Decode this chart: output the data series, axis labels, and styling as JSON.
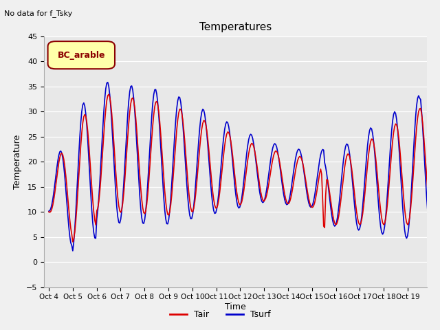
{
  "title": "Temperatures",
  "xlabel": "Time",
  "ylabel": "Temperature",
  "top_left_text": "No data for f_Tsky",
  "legend_box_text": "BC_arable",
  "ylim": [
    -5,
    45
  ],
  "yticks": [
    -5,
    0,
    5,
    10,
    15,
    20,
    25,
    30,
    35,
    40,
    45
  ],
  "fig_bg_color": "#f0f0f0",
  "plot_bg_color": "#e8e8e8",
  "line_colors": {
    "Tair": "#dd0000",
    "Tsurf": "#0000cc"
  },
  "line_width": 1.2,
  "xtick_labels": [
    "Oct 4",
    "Oct 5",
    "Oct 6",
    "Oct 7",
    "Oct 8",
    "Oct 9",
    "Oct 10",
    "Oct 11",
    "Oct 12",
    "Oct 13",
    "Oct 14",
    "Oct 15",
    "Oct 16",
    "Oct 17",
    "Oct 18",
    "Oct 19"
  ],
  "legend_entries": [
    "Tair",
    "Tsurf"
  ],
  "box_facecolor": "#ffffaa",
  "box_edgecolor": "#8b0000",
  "box_text_color": "#8b0000"
}
